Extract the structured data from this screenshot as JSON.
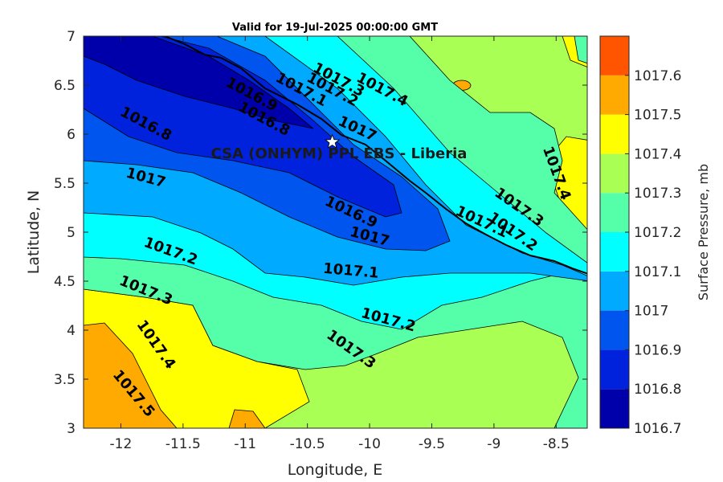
{
  "chart_data": {
    "type": "contour",
    "title": "Valid for 19-Jul-2025 00:00:00 GMT",
    "xlabel": "Longitude, E",
    "ylabel": "Latitude, N",
    "xlim": [
      -12.3,
      -8.25
    ],
    "ylim": [
      3,
      7
    ],
    "x_ticks": [
      "-12",
      "-11.5",
      "-11",
      "-10.5",
      "-10",
      "-9.5",
      "-9",
      "-8.5"
    ],
    "y_ticks": [
      "3",
      "3.5",
      "4",
      "4.5",
      "5",
      "5.5",
      "6",
      "6.5",
      "7"
    ],
    "colorbar": {
      "label": "Surface Pressure, mb",
      "ticks": [
        "1016.7",
        "1016.8",
        "1016.9",
        "1017",
        "1017.1",
        "1017.2",
        "1017.3",
        "1017.4",
        "1017.5",
        "1017.6"
      ],
      "colors": [
        "#0000aa",
        "#0022dd",
        "#0055ee",
        "#00aaff",
        "#00ffff",
        "#55ffaa",
        "#aaff55",
        "#ffff00",
        "#ffaa00",
        "#ff5500"
      ]
    },
    "levels": [
      1016.7,
      1016.8,
      1016.9,
      1017.0,
      1017.1,
      1017.2,
      1017.3,
      1017.4,
      1017.5,
      1017.6
    ],
    "contour_labels": [
      {
        "text": "1016.8",
        "lon": -11.8,
        "lat": 6.1
      },
      {
        "text": "1016.9",
        "lon": -10.95,
        "lat": 6.4
      },
      {
        "text": "1016.8",
        "lon": -10.85,
        "lat": 6.15
      },
      {
        "text": "1017.1",
        "lon": -10.55,
        "lat": 6.45
      },
      {
        "text": "1017.2",
        "lon": -10.3,
        "lat": 6.45
      },
      {
        "text": "1017.3",
        "lon": -10.25,
        "lat": 6.55
      },
      {
        "text": "1017.4",
        "lon": -9.9,
        "lat": 6.45
      },
      {
        "text": "1017",
        "lon": -10.1,
        "lat": 6.05
      },
      {
        "text": "1017",
        "lon": -11.8,
        "lat": 5.55
      },
      {
        "text": "1016.9",
        "lon": -10.15,
        "lat": 5.2
      },
      {
        "text": "1017",
        "lon": -10.0,
        "lat": 4.95
      },
      {
        "text": "1017.1",
        "lon": -10.15,
        "lat": 4.6
      },
      {
        "text": "1017.2",
        "lon": -11.6,
        "lat": 4.8
      },
      {
        "text": "1017.3",
        "lon": -11.8,
        "lat": 4.4
      },
      {
        "text": "1017.4",
        "lon": -11.72,
        "lat": 3.85
      },
      {
        "text": "1017.5",
        "lon": -11.9,
        "lat": 3.35
      },
      {
        "text": "1017.2",
        "lon": -9.85,
        "lat": 4.1
      },
      {
        "text": "1017.3",
        "lon": -10.15,
        "lat": 3.8
      },
      {
        "text": "1017.4",
        "lon": -8.5,
        "lat": 5.6
      },
      {
        "text": "1017.3",
        "lon": -8.8,
        "lat": 5.25
      },
      {
        "text": "1017.2",
        "lon": -8.85,
        "lat": 5.0
      },
      {
        "text": "1017.1",
        "lon": -9.1,
        "lat": 5.1
      }
    ],
    "station": {
      "name": "CSA (ONHYM) PPL EBS  - Liberia",
      "lon": -10.3,
      "lat": 5.92
    }
  }
}
